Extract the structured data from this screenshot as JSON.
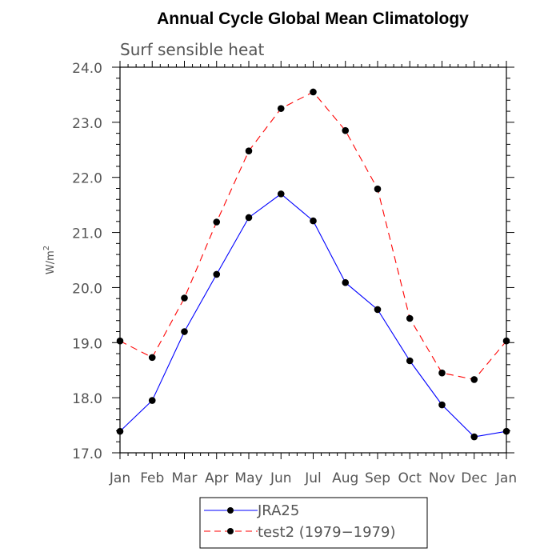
{
  "chart_data": {
    "type": "line",
    "title": "Annual Cycle Global Mean Climatology",
    "subtitle": "Surf sensible heat",
    "ylabel": "W/m",
    "ylabel_sup": "2",
    "xlabel": "",
    "categories": [
      "Jan",
      "Feb",
      "Mar",
      "Apr",
      "May",
      "Jun",
      "Jul",
      "Aug",
      "Sep",
      "Oct",
      "Nov",
      "Dec",
      "Jan"
    ],
    "ylim": [
      17.0,
      24.0
    ],
    "yticks": [
      "17.0",
      "18.0",
      "19.0",
      "20.0",
      "21.0",
      "22.0",
      "23.0",
      "24.0"
    ],
    "grid": false,
    "legend_position": "bottom",
    "series": [
      {
        "name": "JRA25",
        "color": "#0000ff",
        "dash": "solid",
        "marker": "circle",
        "values": [
          17.39,
          17.95,
          19.2,
          20.24,
          21.27,
          21.7,
          21.21,
          20.09,
          19.6,
          18.67,
          17.87,
          17.29,
          17.39
        ]
      },
      {
        "name": "test2 (1979−1979)",
        "color": "#ff0000",
        "dash": "dashed",
        "marker": "circle",
        "values": [
          19.03,
          18.73,
          19.81,
          21.19,
          22.48,
          23.25,
          23.55,
          22.85,
          21.79,
          19.44,
          18.45,
          18.33,
          19.03
        ]
      }
    ]
  }
}
